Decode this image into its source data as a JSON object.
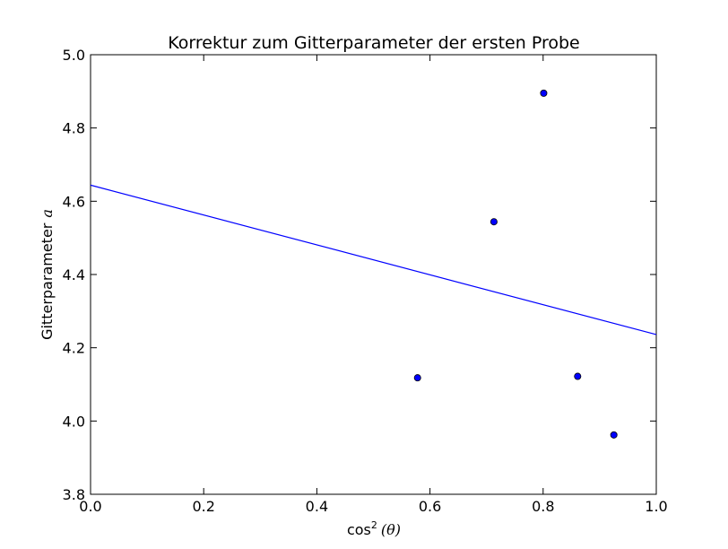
{
  "chart_data": {
    "type": "scatter",
    "title": "Korrektur zum Gitterparameter der ersten Probe",
    "xlabel": {
      "prefix": "cos",
      "superscript": "2",
      "suffix": "(θ)"
    },
    "ylabel": {
      "text": "Gitterparameter",
      "math": "a"
    },
    "xlim": [
      0.0,
      1.0
    ],
    "ylim": [
      3.8,
      5.0
    ],
    "xticks": [
      "0.0",
      "0.2",
      "0.4",
      "0.6",
      "0.8",
      "1.0"
    ],
    "yticks": [
      "3.8",
      "4.0",
      "4.2",
      "4.4",
      "4.6",
      "4.8",
      "5.0"
    ],
    "grid": false,
    "series": [
      {
        "type": "scatter",
        "color": "#0000ff",
        "points": [
          {
            "x": 0.578,
            "y": 4.118
          },
          {
            "x": 0.713,
            "y": 4.544
          },
          {
            "x": 0.801,
            "y": 4.895
          },
          {
            "x": 0.861,
            "y": 4.122
          },
          {
            "x": 0.925,
            "y": 3.962
          }
        ]
      },
      {
        "type": "line",
        "color": "#0000ff",
        "points": [
          {
            "x": 0.0,
            "y": 4.644
          },
          {
            "x": 1.0,
            "y": 4.236
          }
        ]
      }
    ]
  }
}
